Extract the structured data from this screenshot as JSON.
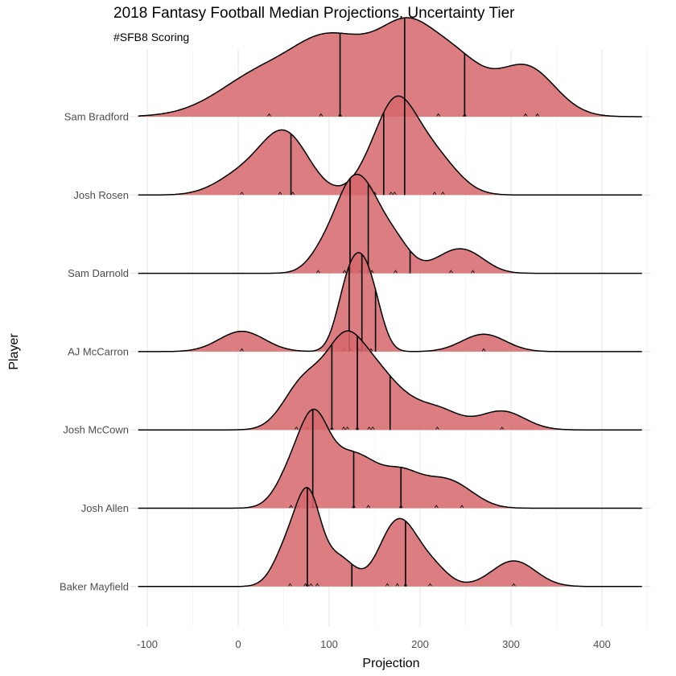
{
  "chart_data": {
    "type": "ridgeline",
    "title": "2018 Fantasy Football Median Projections, Uncertainty Tier",
    "subtitle": "#SFB8 Scoring",
    "xlabel": "Projection",
    "ylabel": "Player",
    "xlim": [
      -110,
      445
    ],
    "x_ticks": [
      -100,
      0,
      100,
      200,
      300,
      400
    ],
    "x_tick_labels": [
      "-100",
      "0",
      "100",
      "200",
      "300",
      "400"
    ],
    "grid": true,
    "fill_color": "#d6666b",
    "line_color": "#000000",
    "series": [
      {
        "name": "Sam Bradford",
        "quantiles": [
          112,
          183,
          249
        ],
        "points": [
          34,
          91,
          112,
          183,
          220,
          249,
          316,
          329
        ],
        "density": [
          {
            "mu": 34,
            "sigma": 50,
            "w": 0.85
          },
          {
            "mu": 91,
            "sigma": 32,
            "w": 0.7
          },
          {
            "mu": 140,
            "sigma": 35,
            "w": 0.9
          },
          {
            "mu": 185,
            "sigma": 28,
            "w": 1.0
          },
          {
            "mu": 220,
            "sigma": 30,
            "w": 0.65
          },
          {
            "mu": 249,
            "sigma": 28,
            "w": 0.55
          },
          {
            "mu": 316,
            "sigma": 32,
            "w": 0.9
          }
        ]
      },
      {
        "name": "Josh Rosen",
        "quantiles": [
          58,
          160,
          183
        ],
        "points": [
          4,
          46,
          60,
          150,
          168,
          172,
          216,
          225
        ],
        "density": [
          {
            "mu": 4,
            "sigma": 28,
            "w": 0.35
          },
          {
            "mu": 46,
            "sigma": 25,
            "w": 0.65
          },
          {
            "mu": 60,
            "sigma": 25,
            "w": 0.45
          },
          {
            "mu": 150,
            "sigma": 20,
            "w": 0.55
          },
          {
            "mu": 172,
            "sigma": 18,
            "w": 0.8
          },
          {
            "mu": 190,
            "sigma": 22,
            "w": 0.8
          },
          {
            "mu": 222,
            "sigma": 24,
            "w": 0.5
          }
        ]
      },
      {
        "name": "Sam Darnold",
        "quantiles": [
          123,
          143,
          189
        ],
        "points": [
          88,
          117,
          124,
          134,
          147,
          173,
          234,
          258
        ],
        "density": [
          {
            "mu": 100,
            "sigma": 18,
            "w": 0.55
          },
          {
            "mu": 122,
            "sigma": 15,
            "w": 0.9
          },
          {
            "mu": 142,
            "sigma": 16,
            "w": 1.0
          },
          {
            "mu": 170,
            "sigma": 18,
            "w": 0.6
          },
          {
            "mu": 234,
            "sigma": 22,
            "w": 0.3
          },
          {
            "mu": 258,
            "sigma": 20,
            "w": 0.2
          }
        ]
      },
      {
        "name": "AJ McCarron",
        "quantiles": [
          122,
          136,
          151
        ],
        "points": [
          4,
          116,
          124,
          133,
          140,
          146,
          270
        ],
        "density": [
          {
            "mu": 4,
            "sigma": 25,
            "w": 0.35
          },
          {
            "mu": 118,
            "sigma": 12,
            "w": 0.8
          },
          {
            "mu": 133,
            "sigma": 12,
            "w": 1.0
          },
          {
            "mu": 148,
            "sigma": 12,
            "w": 0.75
          },
          {
            "mu": 270,
            "sigma": 24,
            "w": 0.3
          }
        ]
      },
      {
        "name": "Josh McCown",
        "quantiles": [
          103,
          131,
          167
        ],
        "points": [
          64,
          76,
          103,
          116,
          120,
          131,
          144,
          148,
          219,
          290
        ],
        "density": [
          {
            "mu": 64,
            "sigma": 20,
            "w": 0.4
          },
          {
            "mu": 90,
            "sigma": 22,
            "w": 0.6
          },
          {
            "mu": 118,
            "sigma": 18,
            "w": 0.9
          },
          {
            "mu": 145,
            "sigma": 20,
            "w": 0.7
          },
          {
            "mu": 175,
            "sigma": 22,
            "w": 0.4
          },
          {
            "mu": 219,
            "sigma": 24,
            "w": 0.3
          },
          {
            "mu": 290,
            "sigma": 25,
            "w": 0.28
          }
        ]
      },
      {
        "name": "Josh Allen",
        "quantiles": [
          82,
          127,
          179
        ],
        "points": [
          58,
          66,
          82,
          86,
          127,
          143,
          179,
          218,
          246
        ],
        "density": [
          {
            "mu": 62,
            "sigma": 18,
            "w": 0.6
          },
          {
            "mu": 84,
            "sigma": 15,
            "w": 0.9
          },
          {
            "mu": 110,
            "sigma": 20,
            "w": 0.55
          },
          {
            "mu": 140,
            "sigma": 20,
            "w": 0.5
          },
          {
            "mu": 179,
            "sigma": 20,
            "w": 0.45
          },
          {
            "mu": 218,
            "sigma": 22,
            "w": 0.3
          },
          {
            "mu": 246,
            "sigma": 22,
            "w": 0.2
          }
        ]
      },
      {
        "name": "Baker Mayfield",
        "quantiles": [
          76,
          125,
          184
        ],
        "points": [
          57,
          74,
          76,
          80,
          87,
          164,
          175,
          184,
          211,
          303
        ],
        "density": [
          {
            "mu": 57,
            "sigma": 16,
            "w": 0.6
          },
          {
            "mu": 78,
            "sigma": 13,
            "w": 1.0
          },
          {
            "mu": 110,
            "sigma": 18,
            "w": 0.4
          },
          {
            "mu": 165,
            "sigma": 16,
            "w": 0.5
          },
          {
            "mu": 184,
            "sigma": 16,
            "w": 0.55
          },
          {
            "mu": 211,
            "sigma": 18,
            "w": 0.3
          },
          {
            "mu": 303,
            "sigma": 24,
            "w": 0.35
          }
        ]
      }
    ]
  }
}
